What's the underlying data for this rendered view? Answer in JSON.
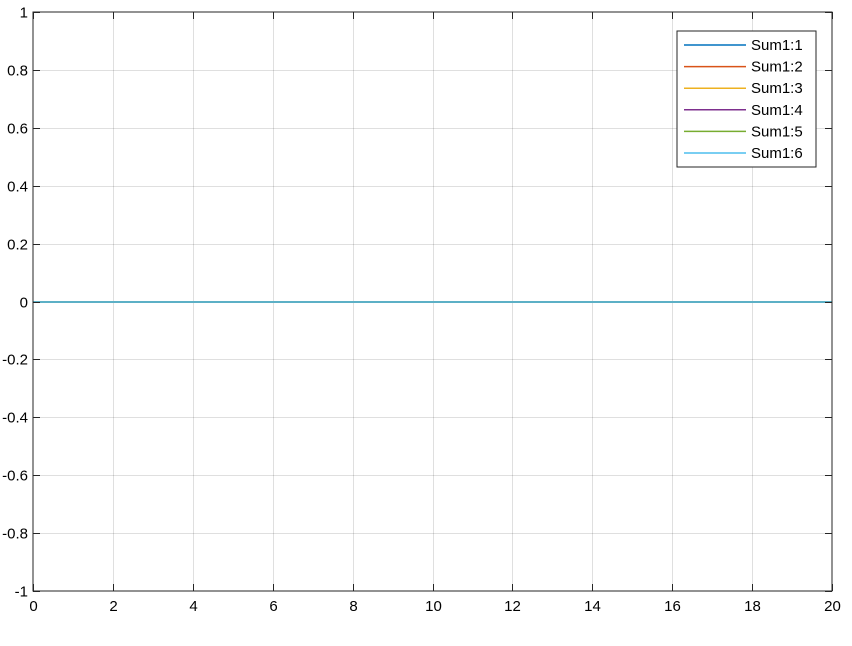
{
  "chart_data": {
    "type": "line",
    "title": "",
    "xlabel": "",
    "ylabel": "",
    "xlim": [
      0,
      20
    ],
    "ylim": [
      -1,
      1
    ],
    "x_ticks": [
      0,
      2,
      4,
      6,
      8,
      10,
      12,
      14,
      16,
      18,
      20
    ],
    "x_tick_labels": [
      "0",
      "2",
      "4",
      "6",
      "8",
      "10",
      "12",
      "14",
      "16",
      "18",
      "20"
    ],
    "y_ticks": [
      -1,
      -0.8,
      -0.6,
      -0.4,
      -0.2,
      0,
      0.2,
      0.4,
      0.6,
      0.8,
      1
    ],
    "y_tick_labels": [
      "-1",
      "-0.8",
      "-0.6",
      "-0.4",
      "-0.2",
      "0",
      "0.2",
      "0.4",
      "0.6",
      "0.8",
      "1"
    ],
    "grid": true,
    "legend_position": "top-right",
    "series": [
      {
        "name": "Sum1:1",
        "color": "#0072BD",
        "x": [
          0,
          20
        ],
        "y": [
          0,
          0
        ]
      },
      {
        "name": "Sum1:2",
        "color": "#D95319",
        "x": [
          0,
          20
        ],
        "y": [
          0,
          0
        ]
      },
      {
        "name": "Sum1:3",
        "color": "#EDB120",
        "x": [
          0,
          20
        ],
        "y": [
          0,
          0
        ]
      },
      {
        "name": "Sum1:4",
        "color": "#7E2F8E",
        "x": [
          0,
          20
        ],
        "y": [
          0,
          0
        ]
      },
      {
        "name": "Sum1:5",
        "color": "#77AC30",
        "x": [
          0,
          20
        ],
        "y": [
          0,
          0
        ]
      },
      {
        "name": "Sum1:6",
        "color": "#4DBEEE",
        "x": [
          0,
          20
        ],
        "y": [
          0,
          0
        ]
      }
    ]
  }
}
